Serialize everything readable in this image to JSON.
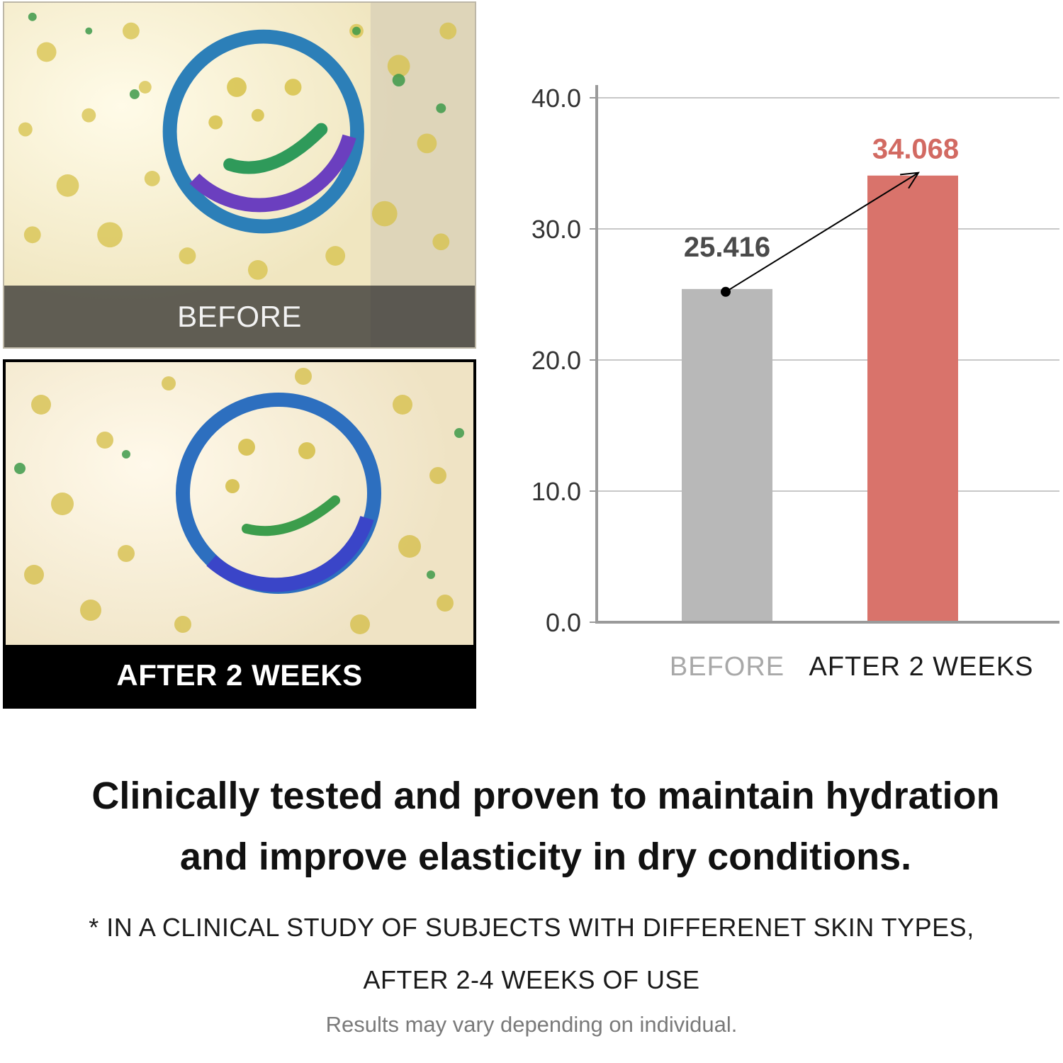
{
  "photos": {
    "before": {
      "caption": "BEFORE"
    },
    "after": {
      "caption": "AFTER 2 WEEKS"
    }
  },
  "chart_data": {
    "type": "bar",
    "categories": [
      "BEFORE",
      "AFTER 2 WEEKS"
    ],
    "values": [
      25.416,
      34.068
    ],
    "value_labels": [
      "25.416",
      "34.068"
    ],
    "ylim": [
      0,
      40
    ],
    "yticks": [
      "0.0",
      "10.0",
      "20.0",
      "30.0",
      "40.0"
    ],
    "title": "",
    "xlabel": "",
    "ylabel": "",
    "grid": true,
    "bar_colors": [
      "#b8b8b8",
      "#d9736b"
    ],
    "value_label_colors": [
      "#4a4a4a",
      "#d26a62"
    ],
    "category_label_colors": [
      "#a8a8a8",
      "#1a1a1a"
    ],
    "arrow": {
      "from": "BEFORE",
      "to": "AFTER 2 WEEKS"
    }
  },
  "headline": {
    "line1": "Clinically tested and proven to maintain hydration",
    "line2": "and improve elasticity in dry conditions."
  },
  "footnote": {
    "line1": "* IN A CLINICAL STUDY OF SUBJECTS WITH DIFFERENET SKIN TYPES,",
    "line2": "AFTER 2-4 WEEKS OF USE"
  },
  "disclaimer": "Results may vary depending on individual."
}
